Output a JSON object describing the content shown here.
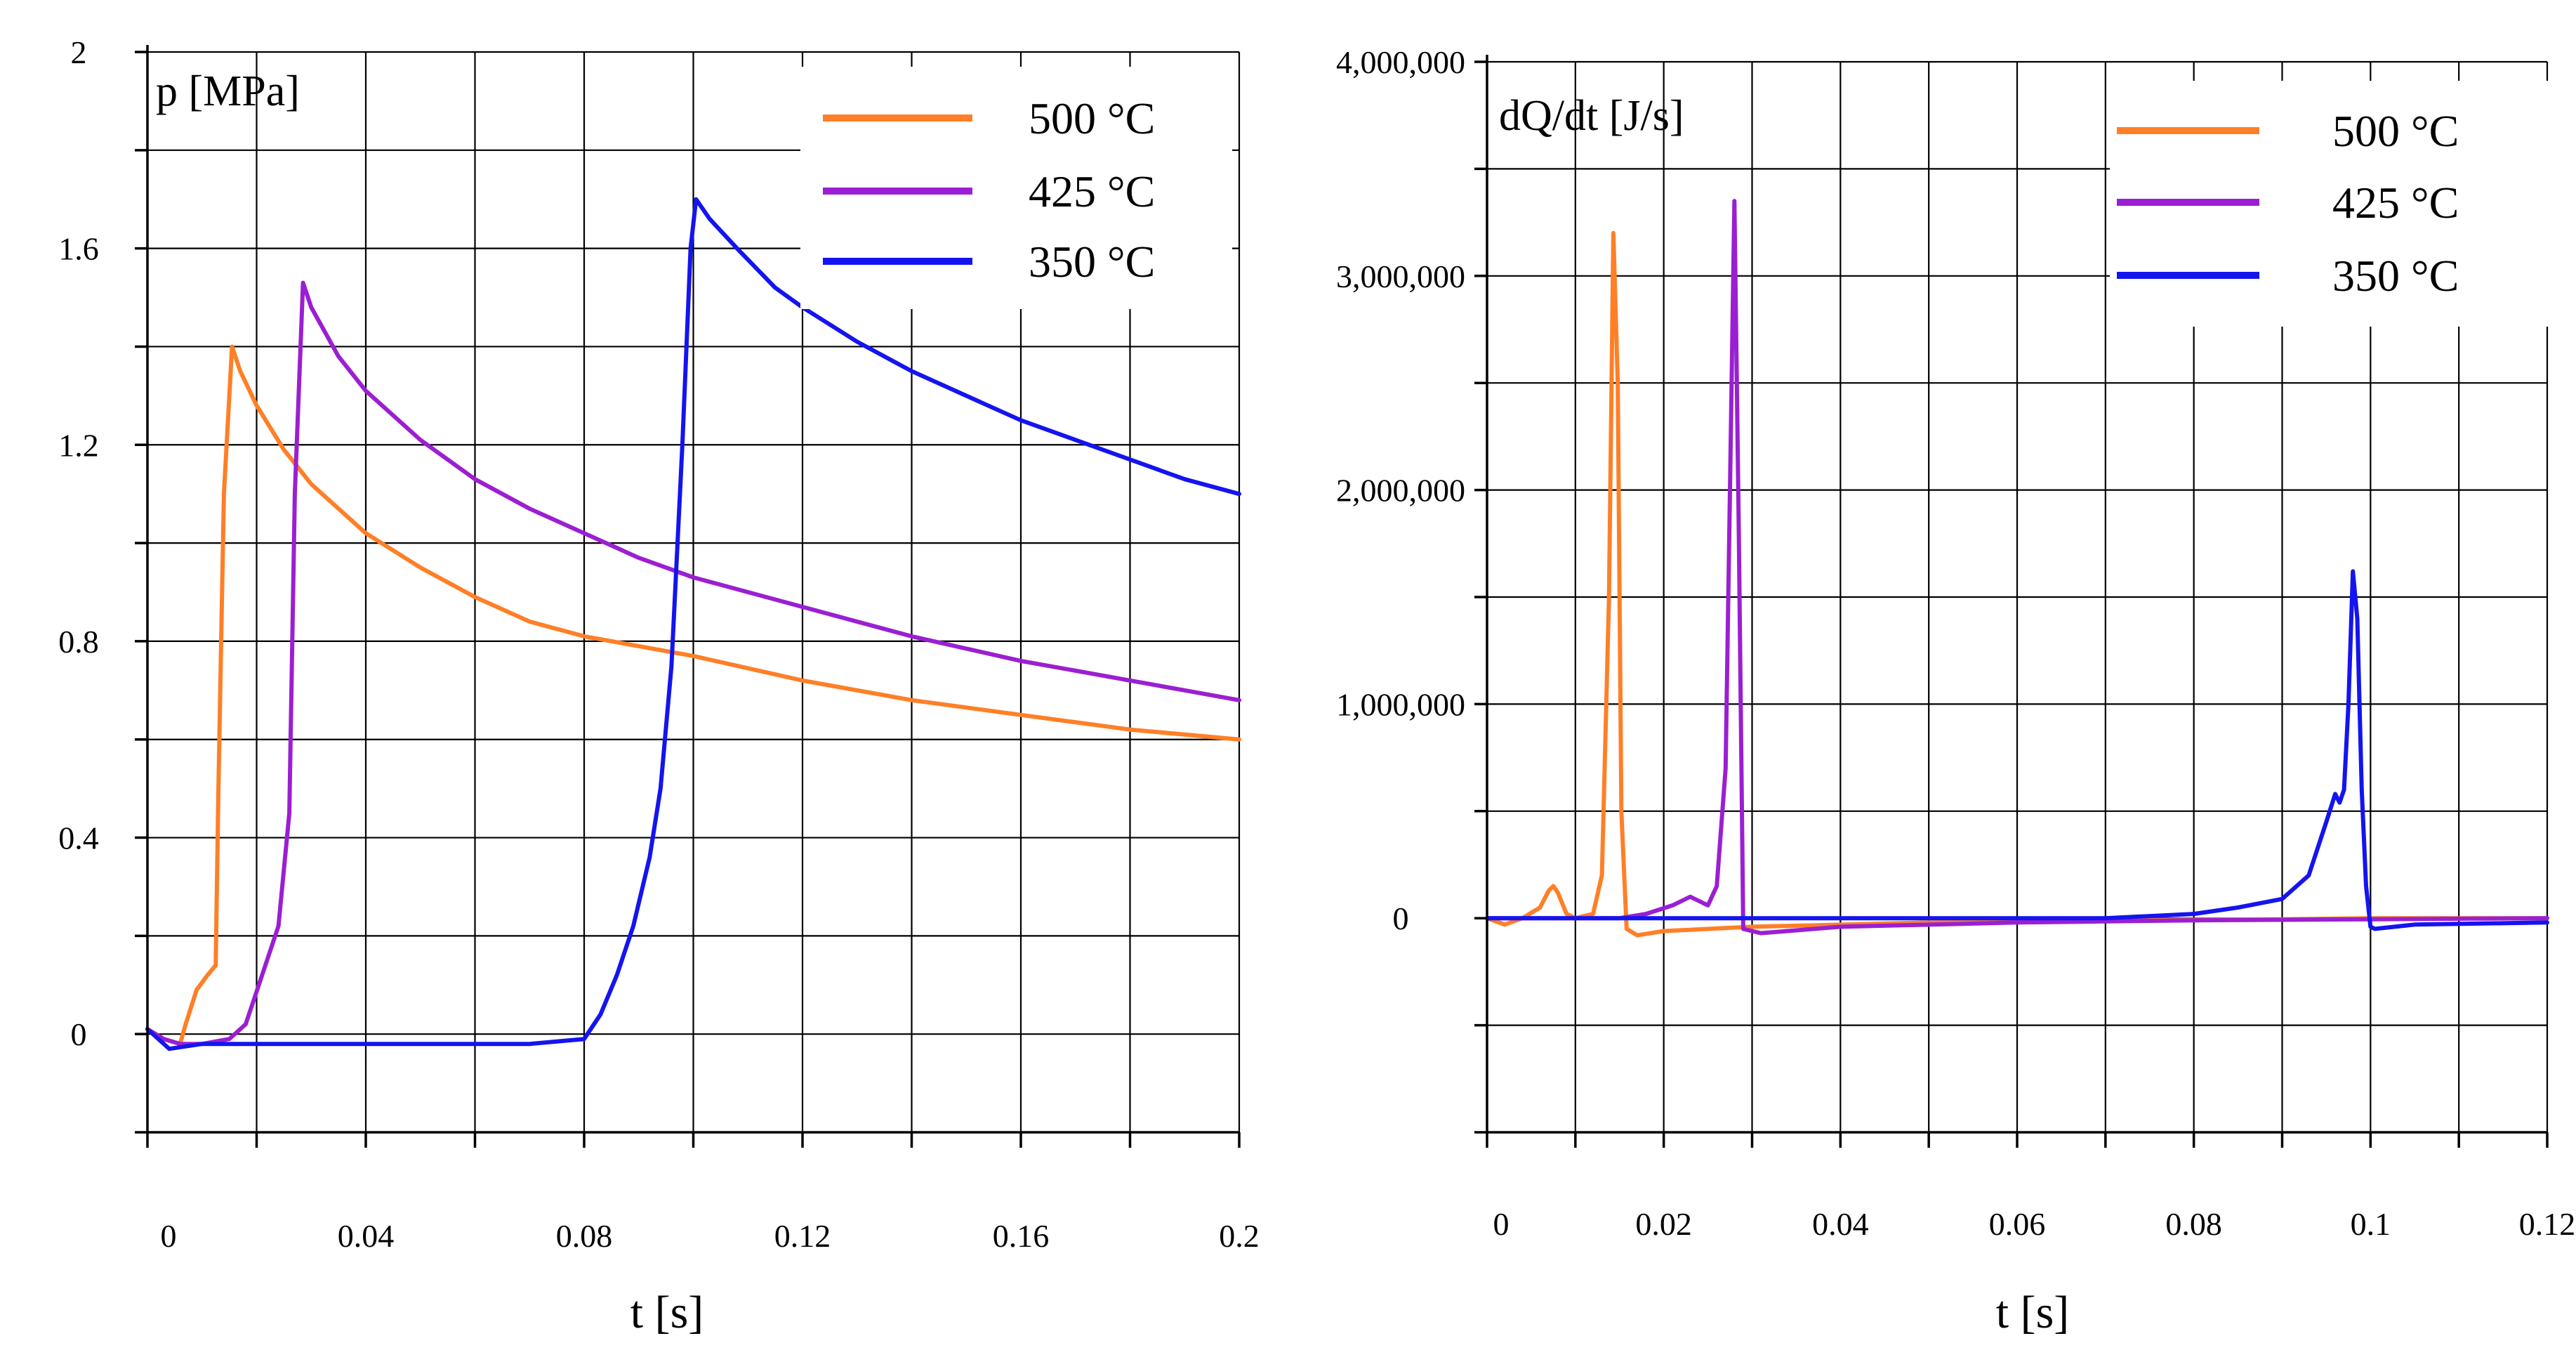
{
  "chart_data": [
    {
      "type": "line",
      "title": "",
      "ylabel": "p [MPa]",
      "xlabel": "t [s]",
      "xlim": [
        0,
        0.2
      ],
      "ylim": [
        -0.2,
        2.0
      ],
      "xticks": [
        0,
        0.04,
        0.08,
        0.12,
        0.16,
        0.2
      ],
      "xtick_labels": [
        "0",
        "0.04",
        "0.08",
        "0.12",
        "0.16",
        "0.2"
      ],
      "yticks": [
        0,
        0.4,
        0.8,
        1.2,
        1.6,
        2
      ],
      "ytick_labels": [
        "0",
        "0.4",
        "0.8",
        "1.2",
        "1.6",
        "2"
      ],
      "grid": true,
      "legend_position": "top-right",
      "series": [
        {
          "name": "500 °C",
          "color": "#ff7f27",
          "x": [
            0,
            0.003,
            0.006,
            0.007,
            0.009,
            0.011,
            0.0125,
            0.013,
            0.014,
            0.0155,
            0.017,
            0.02,
            0.025,
            0.03,
            0.04,
            0.05,
            0.06,
            0.07,
            0.08,
            0.09,
            0.1,
            0.12,
            0.14,
            0.16,
            0.18,
            0.2
          ],
          "y": [
            0.01,
            -0.01,
            -0.02,
            0.02,
            0.09,
            0.12,
            0.14,
            0.5,
            1.1,
            1.4,
            1.35,
            1.28,
            1.19,
            1.12,
            1.02,
            0.95,
            0.89,
            0.84,
            0.81,
            0.79,
            0.77,
            0.72,
            0.68,
            0.65,
            0.62,
            0.6
          ]
        },
        {
          "name": "425 °C",
          "color": "#9b1fd2",
          "x": [
            0,
            0.003,
            0.006,
            0.01,
            0.015,
            0.018,
            0.021,
            0.024,
            0.026,
            0.027,
            0.0285,
            0.03,
            0.035,
            0.04,
            0.05,
            0.06,
            0.07,
            0.08,
            0.09,
            0.1,
            0.12,
            0.14,
            0.16,
            0.18,
            0.2
          ],
          "y": [
            0.01,
            -0.01,
            -0.02,
            -0.02,
            -0.01,
            0.02,
            0.12,
            0.22,
            0.45,
            1.1,
            1.53,
            1.48,
            1.38,
            1.31,
            1.21,
            1.13,
            1.07,
            1.02,
            0.97,
            0.93,
            0.87,
            0.81,
            0.76,
            0.72,
            0.68
          ]
        },
        {
          "name": "350 °C",
          "color": "#1414f0",
          "x": [
            0,
            0.004,
            0.01,
            0.02,
            0.03,
            0.04,
            0.05,
            0.06,
            0.07,
            0.08,
            0.083,
            0.086,
            0.089,
            0.092,
            0.094,
            0.096,
            0.098,
            0.0995,
            0.1005,
            0.103,
            0.108,
            0.115,
            0.12,
            0.13,
            0.14,
            0.15,
            0.16,
            0.17,
            0.18,
            0.19,
            0.2
          ],
          "y": [
            0.01,
            -0.03,
            -0.02,
            -0.02,
            -0.02,
            -0.02,
            -0.02,
            -0.02,
            -0.02,
            -0.01,
            0.04,
            0.12,
            0.22,
            0.36,
            0.5,
            0.75,
            1.2,
            1.6,
            1.7,
            1.66,
            1.6,
            1.52,
            1.48,
            1.41,
            1.35,
            1.3,
            1.25,
            1.21,
            1.17,
            1.13,
            1.1
          ]
        }
      ]
    },
    {
      "type": "line",
      "title": "",
      "ylabel": "dQ/dt [J/s]",
      "xlabel": "t [s]",
      "xlim": [
        0,
        0.12
      ],
      "ylim": [
        -1000000,
        4000000
      ],
      "xticks": [
        0,
        0.02,
        0.04,
        0.06,
        0.08,
        0.1,
        0.12
      ],
      "xtick_labels": [
        "0",
        "0.02",
        "0.04",
        "0.06",
        "0.08",
        "0.1",
        "0.12"
      ],
      "yticks": [
        0,
        1000000,
        2000000,
        3000000,
        4000000
      ],
      "ytick_labels": [
        "0",
        "1,000,000",
        "2,000,000",
        "3,000,000",
        "4,000,000"
      ],
      "grid": true,
      "legend_position": "top-right",
      "series": [
        {
          "name": "500 °C",
          "color": "#ff7f27",
          "x": [
            0,
            0.002,
            0.004,
            0.006,
            0.007,
            0.0075,
            0.008,
            0.009,
            0.01,
            0.012,
            0.013,
            0.0138,
            0.0143,
            0.0148,
            0.0152,
            0.0158,
            0.017,
            0.02,
            0.03,
            0.05,
            0.07,
            0.09,
            0.1,
            0.12
          ],
          "y": [
            0,
            -30000,
            0,
            50000,
            130000,
            150000,
            120000,
            20000,
            0,
            20000,
            200000,
            1500000,
            3200000,
            2500000,
            500000,
            -50000,
            -80000,
            -60000,
            -40000,
            -20000,
            -10000,
            -5000,
            0,
            0
          ]
        },
        {
          "name": "425 °C",
          "color": "#9b1fd2",
          "x": [
            0,
            0.005,
            0.01,
            0.015,
            0.018,
            0.021,
            0.023,
            0.025,
            0.026,
            0.027,
            0.0275,
            0.028,
            0.0285,
            0.029,
            0.031,
            0.04,
            0.06,
            0.08,
            0.1,
            0.12
          ],
          "y": [
            0,
            0,
            0,
            0,
            20000,
            60000,
            100000,
            60000,
            150000,
            700000,
            2000000,
            3350000,
            1800000,
            -50000,
            -70000,
            -40000,
            -20000,
            -10000,
            -5000,
            0
          ]
        },
        {
          "name": "350 °C",
          "color": "#1414f0",
          "x": [
            0,
            0.01,
            0.03,
            0.05,
            0.07,
            0.08,
            0.085,
            0.09,
            0.093,
            0.095,
            0.096,
            0.0965,
            0.097,
            0.0975,
            0.098,
            0.0985,
            0.099,
            0.0995,
            0.1,
            0.1005,
            0.105,
            0.12
          ],
          "y": [
            0,
            0,
            0,
            0,
            0,
            20000,
            50000,
            90000,
            200000,
            450000,
            580000,
            540000,
            600000,
            1000000,
            1620000,
            1400000,
            600000,
            150000,
            -40000,
            -50000,
            -30000,
            -20000
          ]
        }
      ]
    }
  ]
}
